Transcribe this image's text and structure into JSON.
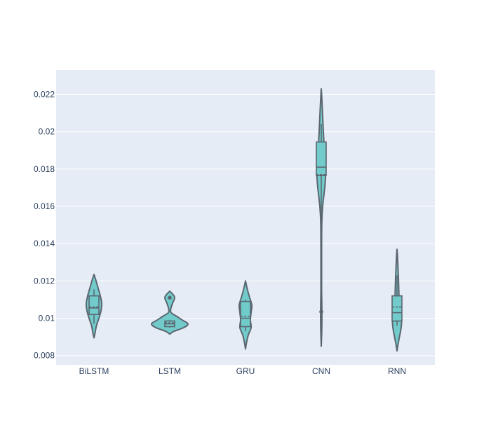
{
  "chart_data": {
    "type": "violin",
    "title": "",
    "xlabel": "",
    "ylabel": "",
    "ylim": [
      0.0075,
      0.0233
    ],
    "yticks": [
      0.008,
      0.01,
      0.012,
      0.014,
      0.016,
      0.018,
      0.02,
      0.022
    ],
    "ytick_labels": [
      "0.008",
      "0.01",
      "0.012",
      "0.014",
      "0.016",
      "0.018",
      "0.02",
      "0.022"
    ],
    "grid": true,
    "legend": "none",
    "colors": {
      "fill": "#72cbcb",
      "stroke": "#5b6670",
      "plot_bg": "#e5ecf6",
      "grid": "#ffffff",
      "text": "#2a3f5f"
    },
    "categories": [
      "BiLSTM",
      "LSTM",
      "GRU",
      "CNN",
      "RNN"
    ],
    "violins": [
      {
        "name": "BiLSTM",
        "min": 0.00895,
        "max": 0.01235,
        "q1": 0.0102,
        "median": 0.01055,
        "q3": 0.0112,
        "mean": 0.0106,
        "whisker_low": 0.0097,
        "whisker_high": 0.01155,
        "outliers": [],
        "density": [
          [
            0.00895,
            0
          ],
          [
            0.0092,
            1.5
          ],
          [
            0.0096,
            3.5
          ],
          [
            0.01,
            7
          ],
          [
            0.0104,
            10
          ],
          [
            0.0108,
            11
          ],
          [
            0.0112,
            9
          ],
          [
            0.0116,
            6
          ],
          [
            0.012,
            3
          ],
          [
            0.01235,
            0
          ]
        ]
      },
      {
        "name": "LSTM",
        "min": 0.00915,
        "max": 0.01145,
        "q1": 0.00955,
        "median": 0.0097,
        "q3": 0.00985,
        "mean": 0.00975,
        "whisker_low": 0.0095,
        "whisker_high": 0.0099,
        "outliers": [
          0.0111
        ],
        "density": [
          [
            0.00915,
            0
          ],
          [
            0.0093,
            6
          ],
          [
            0.0095,
            20
          ],
          [
            0.0097,
            26
          ],
          [
            0.0099,
            18
          ],
          [
            0.0101,
            10
          ],
          [
            0.0103,
            2
          ],
          [
            0.0105,
            1.5
          ],
          [
            0.0108,
            4
          ],
          [
            0.0111,
            7
          ],
          [
            0.0113,
            4
          ],
          [
            0.01145,
            0
          ]
        ]
      },
      {
        "name": "GRU",
        "min": 0.00835,
        "max": 0.012,
        "q1": 0.00955,
        "median": 0.01,
        "q3": 0.0109,
        "mean": 0.0101,
        "whisker_low": 0.0093,
        "whisker_high": 0.011,
        "outliers": [],
        "density": [
          [
            0.00835,
            0
          ],
          [
            0.0087,
            1.5
          ],
          [
            0.0091,
            4
          ],
          [
            0.0095,
            8
          ],
          [
            0.0099,
            7
          ],
          [
            0.0103,
            8
          ],
          [
            0.0107,
            9
          ],
          [
            0.0111,
            6
          ],
          [
            0.0115,
            3
          ],
          [
            0.012,
            0
          ]
        ]
      },
      {
        "name": "CNN",
        "min": 0.0085,
        "max": 0.0223,
        "q1": 0.01765,
        "median": 0.0181,
        "q3": 0.01945,
        "mean": 0.0177,
        "whisker_low": 0.0153,
        "whisker_high": 0.0204,
        "outliers": [
          0.01035
        ],
        "density": [
          [
            0.0085,
            0
          ],
          [
            0.0095,
            0.8
          ],
          [
            0.0105,
            0.9
          ],
          [
            0.0115,
            0.5
          ],
          [
            0.013,
            0.5
          ],
          [
            0.015,
            0.7
          ],
          [
            0.016,
            2
          ],
          [
            0.017,
            5
          ],
          [
            0.0175,
            6
          ],
          [
            0.018,
            6.5
          ],
          [
            0.0185,
            5.5
          ],
          [
            0.019,
            4.5
          ],
          [
            0.02,
            3
          ],
          [
            0.021,
            1.8
          ],
          [
            0.0218,
            0.8
          ],
          [
            0.0223,
            0
          ]
        ]
      },
      {
        "name": "RNN",
        "min": 0.00825,
        "max": 0.0137,
        "q1": 0.00985,
        "median": 0.0103,
        "q3": 0.0112,
        "mean": 0.0106,
        "whisker_low": 0.0096,
        "whisker_high": 0.0123,
        "outliers": [],
        "density": [
          [
            0.00825,
            0
          ],
          [
            0.0086,
            1.5
          ],
          [
            0.009,
            3.5
          ],
          [
            0.0094,
            5.5
          ],
          [
            0.0098,
            6.5
          ],
          [
            0.0102,
            5.5
          ],
          [
            0.0106,
            4
          ],
          [
            0.011,
            3
          ],
          [
            0.0116,
            2.5
          ],
          [
            0.0122,
            2
          ],
          [
            0.0128,
            1.3
          ],
          [
            0.0134,
            0.6
          ],
          [
            0.0137,
            0
          ]
        ]
      }
    ]
  }
}
